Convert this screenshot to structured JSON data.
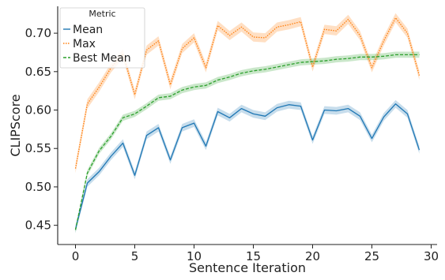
{
  "chart_data": {
    "type": "line",
    "title": "",
    "xlabel": "Sentence Iteration",
    "ylabel": "CLIPScore",
    "xlim": [
      -1.5,
      30.5
    ],
    "ylim": [
      0.425,
      0.735
    ],
    "xticks": [
      0,
      5,
      10,
      15,
      20,
      25,
      30
    ],
    "yticks": [
      0.45,
      0.5,
      0.55,
      0.6,
      0.65,
      0.7
    ],
    "ytick_labels": [
      "0.45",
      "0.50",
      "0.55",
      "0.60",
      "0.65",
      "0.70"
    ],
    "grid": false,
    "legend": {
      "title": "Metric",
      "placement": "top-left"
    },
    "x": [
      0,
      1,
      2,
      3,
      4,
      5,
      6,
      7,
      8,
      9,
      10,
      11,
      12,
      13,
      14,
      15,
      16,
      17,
      18,
      19,
      20,
      21,
      22,
      23,
      24,
      25,
      26,
      27,
      28,
      29
    ],
    "series": [
      {
        "name": "Mean",
        "color": "#1f77b4",
        "style": "solid",
        "values": [
          0.445,
          0.505,
          0.52,
          0.54,
          0.557,
          0.515,
          0.567,
          0.577,
          0.535,
          0.577,
          0.583,
          0.553,
          0.598,
          0.59,
          0.602,
          0.595,
          0.592,
          0.603,
          0.607,
          0.605,
          0.561,
          0.6,
          0.599,
          0.602,
          0.592,
          0.563,
          0.591,
          0.608,
          0.595,
          0.548
        ],
        "band": 0.005
      },
      {
        "name": "Max",
        "color": "#ff7f0e",
        "style": "dotted",
        "values": [
          0.524,
          0.608,
          0.63,
          0.655,
          0.673,
          0.62,
          0.678,
          0.69,
          0.633,
          0.68,
          0.694,
          0.655,
          0.71,
          0.697,
          0.708,
          0.695,
          0.694,
          0.708,
          0.711,
          0.715,
          0.656,
          0.705,
          0.703,
          0.718,
          0.697,
          0.655,
          0.69,
          0.72,
          0.7,
          0.645
        ],
        "band": 0.006
      },
      {
        "name": "Best Mean",
        "color": "#2ca02c",
        "style": "dashed",
        "values": [
          0.444,
          0.518,
          0.547,
          0.566,
          0.59,
          0.595,
          0.605,
          0.616,
          0.618,
          0.626,
          0.63,
          0.632,
          0.639,
          0.643,
          0.648,
          0.651,
          0.653,
          0.656,
          0.659,
          0.662,
          0.663,
          0.664,
          0.666,
          0.667,
          0.669,
          0.669,
          0.67,
          0.672,
          0.672,
          0.672
        ],
        "band": 0.004
      }
    ]
  }
}
